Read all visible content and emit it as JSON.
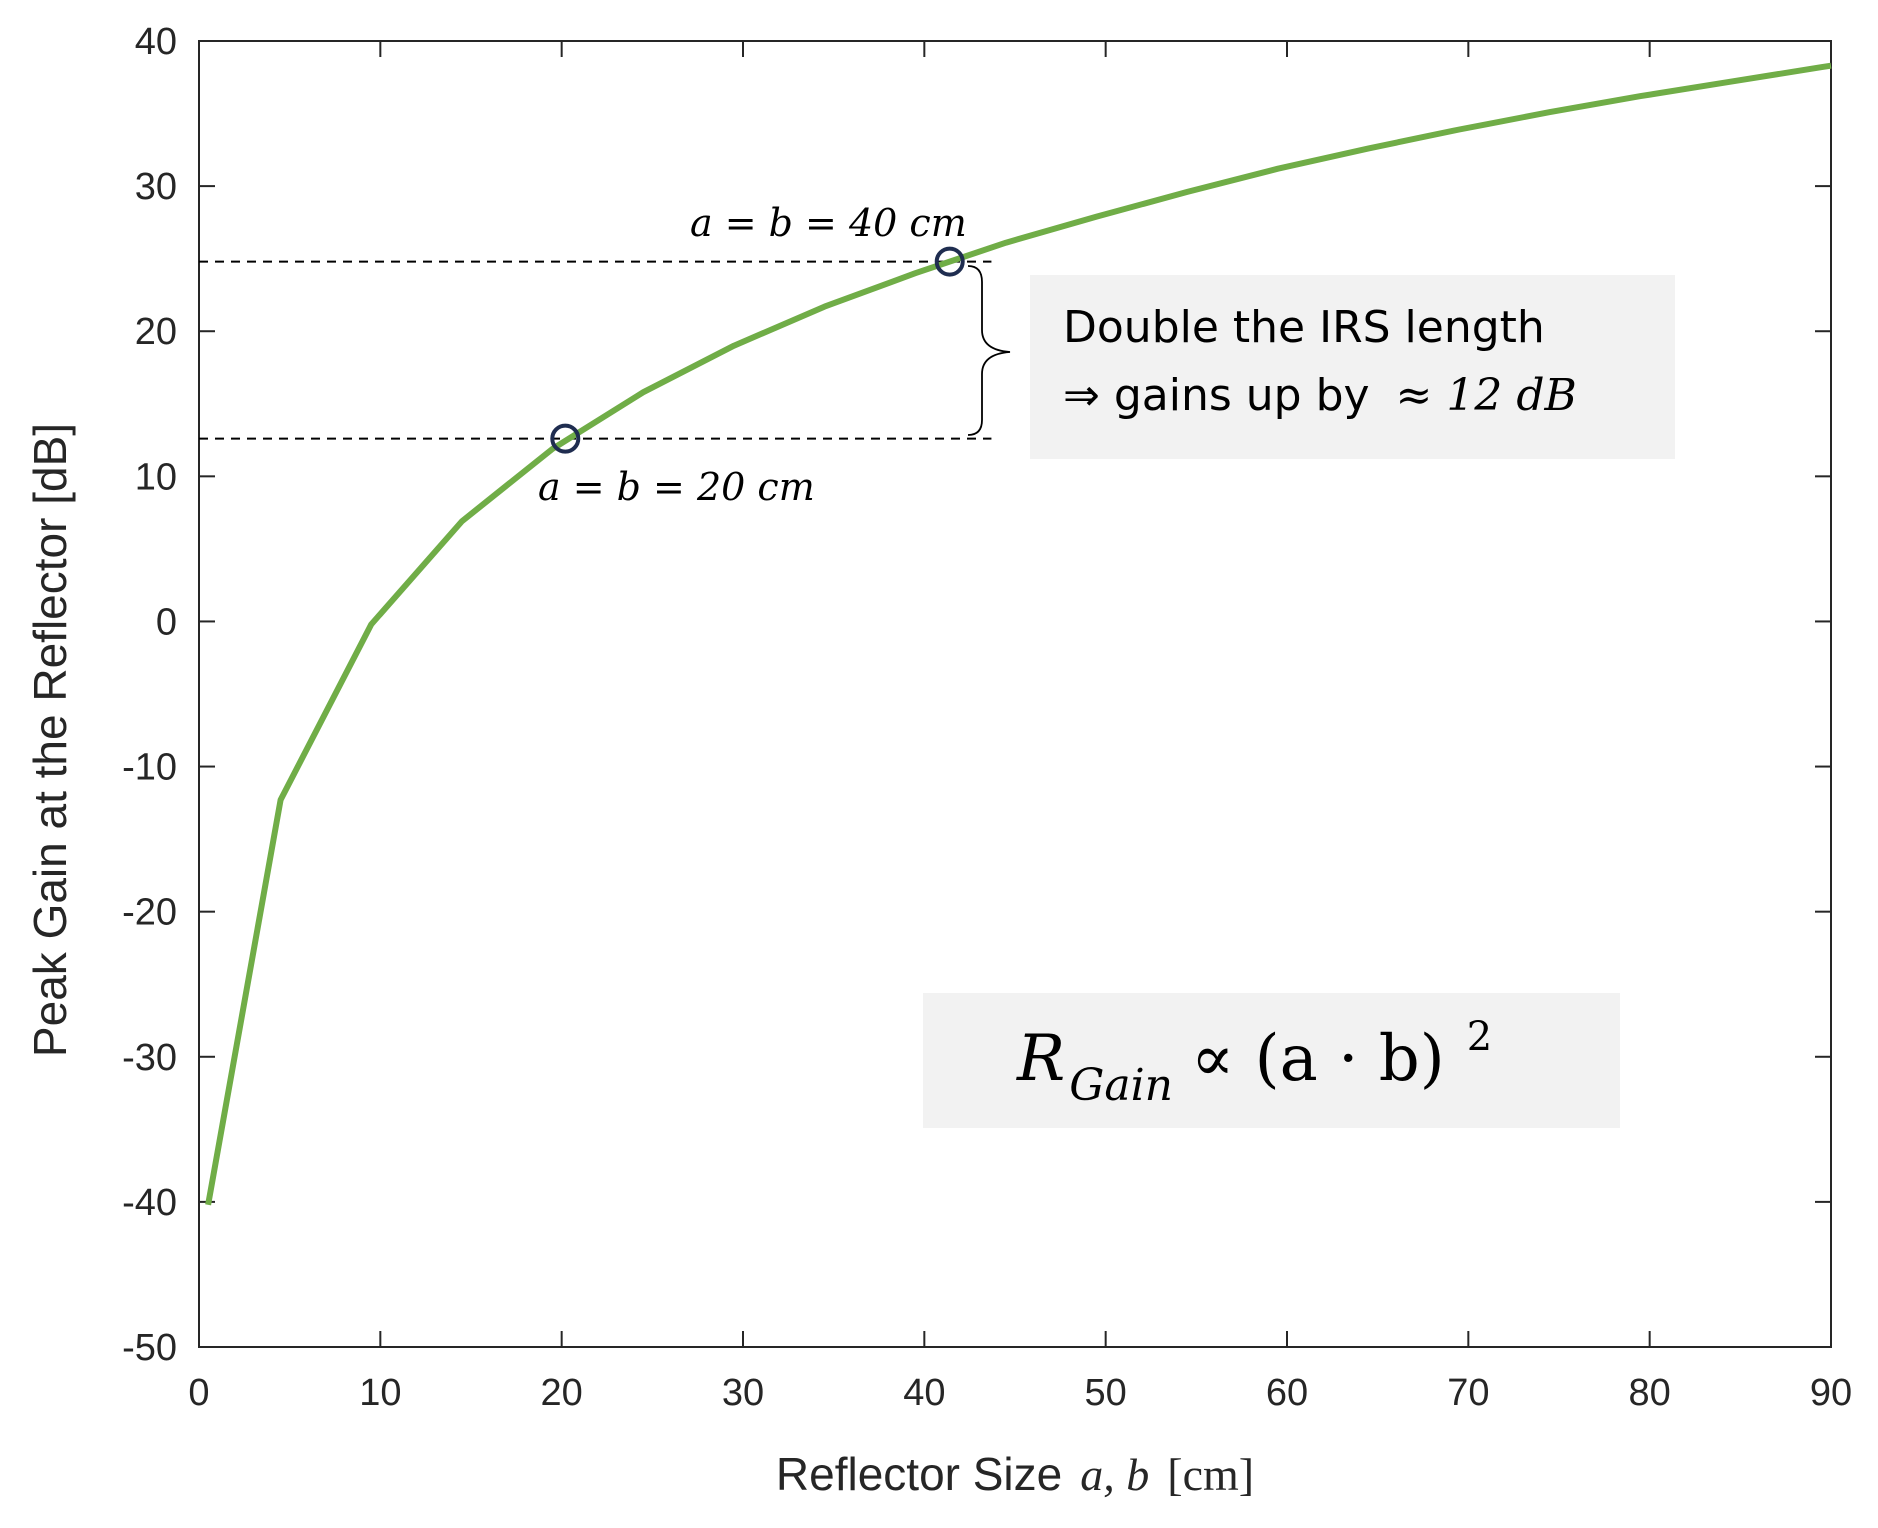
{
  "chart_data": {
    "type": "line",
    "xlabel_text": "Reflector Size",
    "xlabel_math": "a, b",
    "xlabel_unit": "[cm]",
    "ylabel": "Peak Gain at the Reflector [dB]",
    "xlim": [
      0,
      90
    ],
    "ylim": [
      -50,
      40
    ],
    "xticks": [
      0,
      10,
      20,
      30,
      40,
      50,
      60,
      70,
      80,
      90
    ],
    "yticks": [
      40,
      30,
      20,
      10,
      0,
      -10,
      -20,
      -30,
      -40,
      -50
    ],
    "grid": false,
    "line_color": "#70ad47",
    "series": [
      {
        "x": [
          0.5,
          4.5,
          9.5,
          14.5,
          19.5,
          24.5,
          29.5,
          34.5,
          39.5,
          44.5,
          49.5,
          54.5,
          59.5,
          64.5,
          69.5,
          74.5,
          79.5,
          84.5,
          89.5,
          90
        ],
        "y": [
          -40.2,
          -12.3,
          -0.2,
          6.9,
          11.9,
          15.8,
          19.0,
          21.7,
          24.0,
          26.1,
          27.9,
          29.6,
          31.2,
          32.6,
          33.9,
          35.1,
          36.2,
          37.2,
          38.2,
          38.3
        ]
      }
    ],
    "markers": [
      {
        "x": 20.2,
        "y": 12.6,
        "label": "a = b = 20 cm",
        "color": "#1f2d50"
      },
      {
        "x": 41.4,
        "y": 24.8,
        "label": "a = b = 40 cm",
        "color": "#1f2d50"
      }
    ],
    "annotations": {
      "box1_line1": "Double the IRS length",
      "box1_line2_prefix": "⇒ gains up by",
      "box1_line2_math": "≈ 12 dB",
      "formula_main": "R",
      "formula_sub": "Gain",
      "formula_rest": "∝ (a · b)",
      "formula_sup": "2"
    }
  }
}
